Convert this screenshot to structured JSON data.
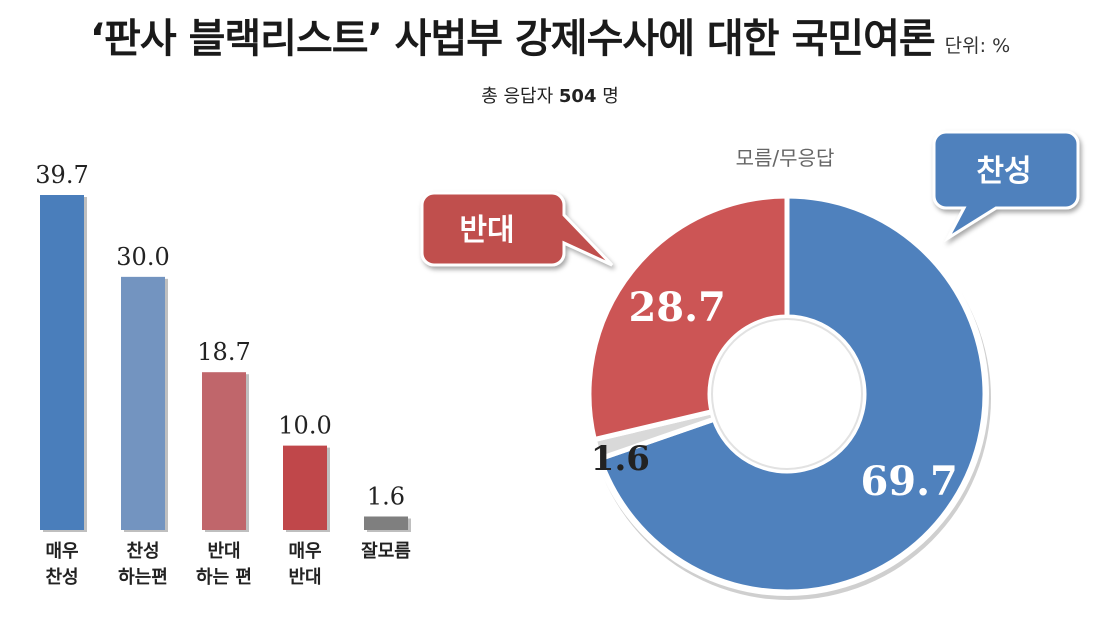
{
  "header": {
    "title": "‘판사 블랙리스트’ 사법부 강제수사에 대한 국민여론",
    "unit": "단위: %",
    "respondents_prefix": "총 응답자 ",
    "respondents_count": "504",
    "respondents_suffix": " 명"
  },
  "chart_data": [
    {
      "type": "bar",
      "categories": [
        [
          "매우",
          "찬성"
        ],
        [
          "찬성",
          "하는편"
        ],
        [
          "반대",
          "하는 편"
        ],
        [
          "매우",
          "반대"
        ],
        [
          "잘모름"
        ]
      ],
      "values": [
        39.7,
        30.0,
        18.7,
        10.0,
        1.6
      ],
      "value_labels": [
        "39.7",
        "30.0",
        "18.7",
        "10.0",
        "1.6"
      ],
      "colors": [
        "#4a7ebb",
        "#7394c0",
        "#c0666b",
        "#c0474a",
        "#7f7f7f"
      ],
      "ylim": [
        0,
        39.7
      ],
      "grid": false
    },
    {
      "type": "pie",
      "style": "donut",
      "slices": [
        {
          "name": "찬성",
          "value": 69.7,
          "label": "69.7",
          "color": "#4f81bd"
        },
        {
          "name": "모름/무응답",
          "value": 1.6,
          "label": "1.6",
          "color": "#d9d9d9"
        },
        {
          "name": "반대",
          "value": 28.7,
          "label": "28.7",
          "color": "#cc5555"
        }
      ],
      "callouts": {
        "support": {
          "text": "찬성",
          "color": "#4f81bd"
        },
        "oppose": {
          "text": "반대",
          "color": "#c0504d"
        },
        "unknown": {
          "text": "모름/무응답"
        }
      }
    }
  ]
}
